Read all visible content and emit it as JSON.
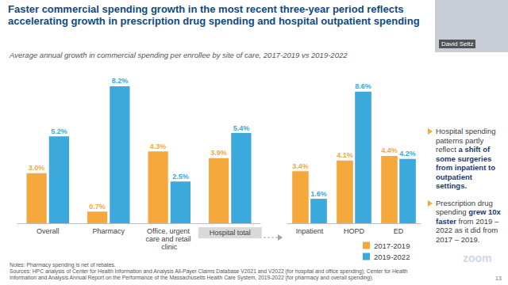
{
  "title": "Faster commercial spending growth in the most recent three-year period reflects accelerating growth in prescription drug spending and hospital outpatient spending",
  "subtitle": "Average annual growth in commercial spending per enrollee by site of care, 2017-2019 vs 2019-2022",
  "presenter": "David Seltz",
  "bullets": [
    [
      {
        "text": "Hospital spending patterns partly reflect ",
        "bold": false
      },
      {
        "text": "a shift of some surgeries from inpatient to outpatient settings.",
        "bold": true
      }
    ],
    [
      {
        "text": "Prescription drug spending ",
        "bold": false
      },
      {
        "text": "grew 10x faster",
        "bold": true
      },
      {
        "text": " from 2019 – 2022 as it did from 2017 – 2019.",
        "bold": false
      }
    ]
  ],
  "notes": [
    "Notes: Pharmacy spending is net of rebates.",
    "Sources: HPC analysis of Center for Health Information and Analysis All-Payer Claims Database V2021 and V2022 (for hospital and office spending); Center for Health Information and Analysis Annual Report on the Performance of the Massachusetts Health Care System, 2019-2022 (for pharmacy and overall spending)."
  ],
  "watermark": "zoom",
  "page": 13,
  "chart_data": [
    {
      "type": "bar",
      "categories": [
        "Overall",
        "Pharmacy",
        "Office, urgent care and retail clinic",
        "Hospital total"
      ],
      "series": [
        {
          "color": "#f5a83c",
          "values": [
            3.0,
            0.7,
            4.3,
            3.9
          ],
          "value_labels": [
            "3.0%",
            "0.7%",
            "4.3%",
            "3.9%"
          ]
        },
        {
          "color": "#3ba9dc",
          "values": [
            5.2,
            8.2,
            2.5,
            5.4
          ],
          "value_labels": [
            "5.2%",
            "8.2%",
            "2.5%",
            "5.4%"
          ]
        }
      ],
      "ylim": [
        0,
        9
      ],
      "grid": false,
      "data_labels": true,
      "tick_labels": "x"
    },
    {
      "type": "bar",
      "categories": [
        "Inpatient",
        "HOPD",
        "ED"
      ],
      "series": [
        {
          "name": "2017-2019",
          "color": "#f5a83c",
          "values": [
            3.4,
            4.1,
            4.4
          ],
          "value_labels": [
            "3.4%",
            "4.1%",
            "4.4%"
          ]
        },
        {
          "name": "2019-2022",
          "color": "#3ba9dc",
          "values": [
            1.6,
            8.6,
            4.2
          ],
          "value_labels": [
            "1.6%",
            "8.6%",
            "4.2%"
          ]
        }
      ],
      "ylim": [
        0,
        9
      ],
      "grid": false,
      "data_labels": true,
      "tick_labels": "x",
      "legend": "bottom-right"
    }
  ]
}
